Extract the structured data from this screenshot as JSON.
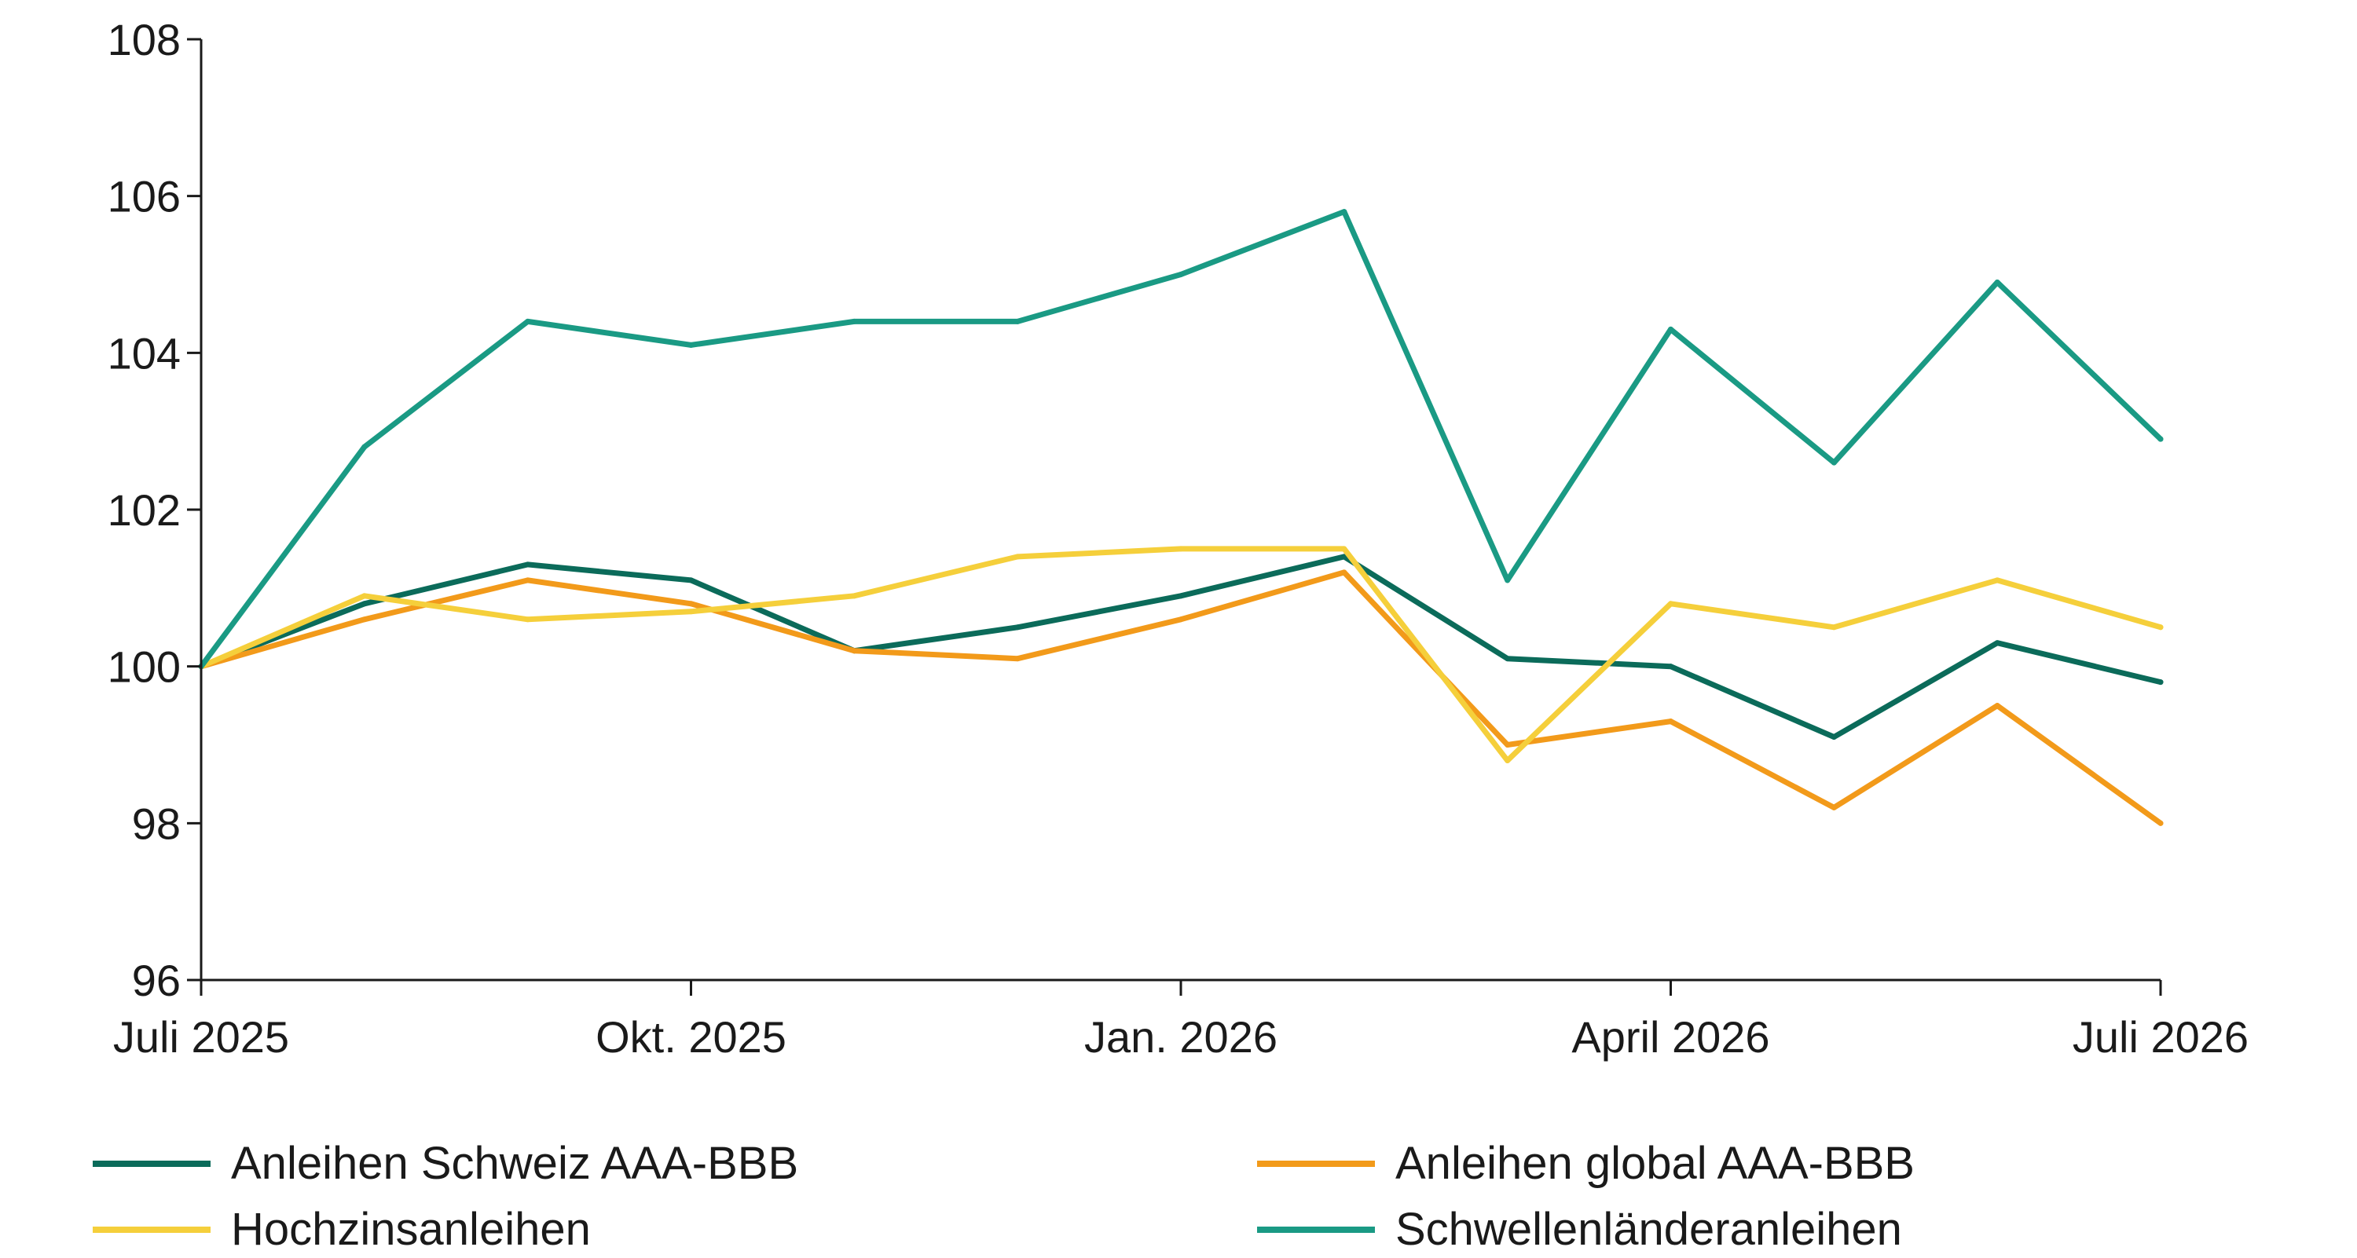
{
  "chart_data": {
    "type": "line",
    "title": "",
    "xlabel": "",
    "ylabel": "",
    "ylim": [
      96,
      108
    ],
    "yticks": [
      "96",
      "98",
      "100",
      "102",
      "104",
      "106",
      "108"
    ],
    "xticks": [
      "Juli 2025",
      "Okt. 2025",
      "Jan. 2026",
      "April 2026",
      "Juli 2026"
    ],
    "x": [
      "2025-07",
      "2025-08",
      "2025-09",
      "2025-10",
      "2025-11",
      "2025-12",
      "2026-01",
      "2026-02",
      "2026-03",
      "2026-04",
      "2026-05",
      "2026-06",
      "2026-07"
    ],
    "legend_position": "bottom",
    "grid": false,
    "series": [
      {
        "name": "Anleihen Schweiz AAA-BBB",
        "color": "#0b6b5a",
        "values": [
          100.0,
          100.8,
          101.3,
          101.1,
          100.2,
          100.5,
          100.9,
          101.4,
          100.1,
          100.0,
          99.1,
          100.3,
          99.8
        ]
      },
      {
        "name": "Anleihen global AAA-BBB",
        "color": "#f29a1a",
        "values": [
          100.0,
          100.6,
          101.1,
          100.8,
          100.2,
          100.1,
          100.6,
          101.2,
          99.0,
          99.3,
          98.2,
          99.5,
          98.0
        ]
      },
      {
        "name": "Hochzinsanleihen",
        "color": "#f5cf3b",
        "values": [
          100.0,
          100.9,
          100.6,
          100.7,
          100.9,
          101.4,
          101.5,
          101.5,
          98.8,
          100.8,
          100.5,
          101.1,
          100.5
        ]
      },
      {
        "name": "Schwellenländeranleihen",
        "color": "#1a9a84",
        "values": [
          100.0,
          102.8,
          104.4,
          104.1,
          104.4,
          104.4,
          105.0,
          105.8,
          101.1,
          104.3,
          102.6,
          104.9,
          102.9
        ]
      }
    ]
  }
}
